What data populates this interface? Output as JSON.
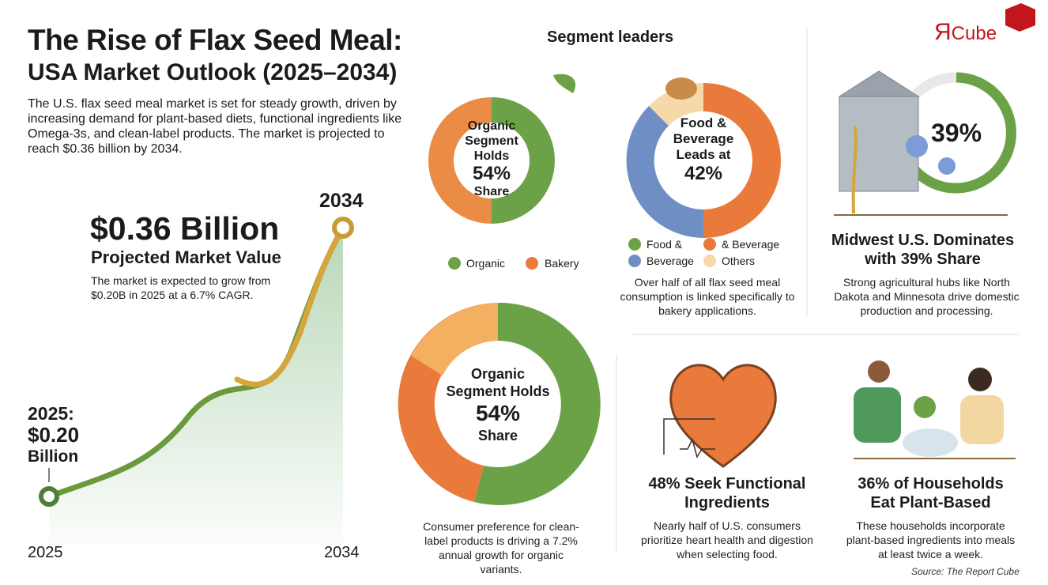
{
  "header": {
    "title_line1": "The Rise of Flax Seed Meal:",
    "title_line2": "USA Market Outlook (2025–2034)",
    "intro": "The U.S. flax seed meal market is set for steady growth, driven by increasing demand for plant-based diets, functional ingredients like Omega-3s, and clean-label products. The market is projected to reach $0.36 billion by 2034."
  },
  "logo": {
    "mark": "Я",
    "text": "Cube"
  },
  "growth": {
    "end_year": "2034",
    "value": "$0.36 Billion",
    "value_caption": "Projected Market Value",
    "note": "The market is expected to grow from $0.20B in 2025 at a 6.7% CAGR.",
    "start_lines": [
      "2025:",
      "$0.20",
      "Billion"
    ],
    "axis_start": "2025",
    "axis_end": "2034"
  },
  "segments": {
    "heading": "Segment leaders",
    "organic": {
      "center": [
        "Organic",
        "Segment",
        "Holds",
        "54%",
        "Share"
      ],
      "legend": [
        "Organic",
        "Bakery"
      ]
    },
    "food": {
      "center": [
        "Food &",
        "Beverage",
        "Leads at",
        "42%"
      ],
      "legend": [
        "Food &",
        "& Beverage",
        "Beverage",
        "Others"
      ],
      "note": "Over half of all flax seed meal consumption is linked specifically to bakery applications."
    },
    "organic_large": {
      "center": [
        "Organic",
        "Segment Holds",
        "54%",
        "Share"
      ],
      "note": "Consumer preference for clean-label products is driving a 7.2% annual growth for organic variants."
    }
  },
  "midwest": {
    "percent": "39%",
    "title": [
      "Midwest U.S. Dominates",
      "with 39% Share"
    ],
    "note": "Strong agricultural hubs like North Dakota and Minnesota drive domestic production and processing."
  },
  "functional": {
    "title": [
      "48% Seek Functional",
      "Ingredients"
    ],
    "note": "Nearly half of U.S. consumers prioritize heart health and digestion when selecting food."
  },
  "households": {
    "title": [
      "36% of Households",
      "Eat Plant-Based"
    ],
    "note": "These households incorporate plant-based ingredients into meals at least twice a week."
  },
  "source": "Source: The Report Cube"
}
